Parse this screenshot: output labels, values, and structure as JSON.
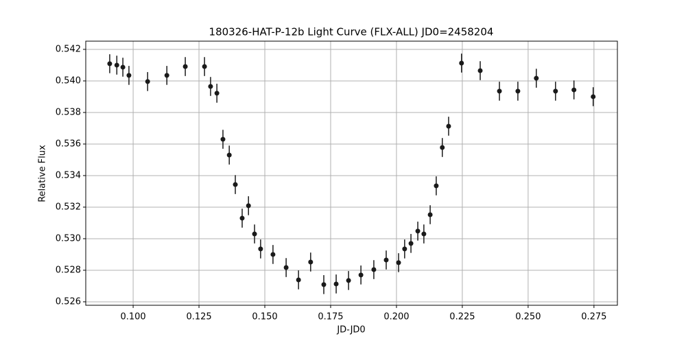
{
  "chart_data": {
    "type": "scatter",
    "title": "180326-HAT-P-12b Light Curve (FLX-ALL) JD0=2458204",
    "x_label": "JD-JD0",
    "y_label": "Relative Flux",
    "series": [
      {
        "color": "#1a1a1a",
        "x": [
          0.0911,
          0.0938,
          0.0961,
          0.0984,
          0.1055,
          0.1128,
          0.1198,
          0.1271,
          0.1294,
          0.1318,
          0.1341,
          0.1365,
          0.1388,
          0.1414,
          0.1438,
          0.1461,
          0.1484,
          0.1531,
          0.1581,
          0.1628,
          0.1674,
          0.1724,
          0.1771,
          0.1818,
          0.1865,
          0.1914,
          0.1961,
          0.2008,
          0.2031,
          0.2055,
          0.2081,
          0.2104,
          0.2128,
          0.2151,
          0.2174,
          0.2198,
          0.2247,
          0.2318,
          0.2391,
          0.2461,
          0.2531,
          0.2604,
          0.2674,
          0.2747
        ],
        "values": [
          0.54109,
          0.541,
          0.54087,
          0.54035,
          0.53996,
          0.54035,
          0.54091,
          0.54091,
          0.53965,
          0.53922,
          0.5363,
          0.5353,
          0.53343,
          0.5313,
          0.53209,
          0.5303,
          0.52935,
          0.529,
          0.52817,
          0.52739,
          0.52852,
          0.52709,
          0.52713,
          0.52735,
          0.5277,
          0.52804,
          0.52865,
          0.52848,
          0.52935,
          0.5297,
          0.53048,
          0.5303,
          0.53152,
          0.53335,
          0.53578,
          0.53713,
          0.54113,
          0.54065,
          0.53935,
          0.53935,
          0.54017,
          0.53935,
          0.53943,
          0.539
        ],
        "errors": [
          0.0006,
          0.0006,
          0.0006,
          0.0006,
          0.0006,
          0.0006,
          0.0006,
          0.0006,
          0.0006,
          0.0006,
          0.0006,
          0.0006,
          0.0006,
          0.0006,
          0.0006,
          0.0006,
          0.0006,
          0.0006,
          0.0006,
          0.0006,
          0.0006,
          0.0006,
          0.0006,
          0.0006,
          0.0006,
          0.0006,
          0.0006,
          0.0006,
          0.0006,
          0.0006,
          0.0006,
          0.0006,
          0.0006,
          0.0006,
          0.0006,
          0.0006,
          0.0006,
          0.0006,
          0.0006,
          0.0006,
          0.0006,
          0.0006,
          0.0006,
          0.0006
        ]
      }
    ],
    "xlim": [
      0.082,
      0.2839
    ],
    "ylim": [
      0.52578,
      0.54252
    ],
    "xticks": [
      {
        "value": 0.1,
        "label": "0.100"
      },
      {
        "value": 0.125,
        "label": "0.125"
      },
      {
        "value": 0.15,
        "label": "0.150"
      },
      {
        "value": 0.175,
        "label": "0.175"
      },
      {
        "value": 0.2,
        "label": "0.200"
      },
      {
        "value": 0.225,
        "label": "0.225"
      },
      {
        "value": 0.25,
        "label": "0.250"
      },
      {
        "value": 0.275,
        "label": "0.275"
      }
    ],
    "yticks": [
      0.526,
      0.528,
      {
        "value": 0.53,
        "label": "0.530"
      },
      0.532,
      0.534,
      0.536,
      0.538,
      {
        "value": 0.54,
        "label": "0.540"
      },
      0.542
    ],
    "grid": true
  }
}
